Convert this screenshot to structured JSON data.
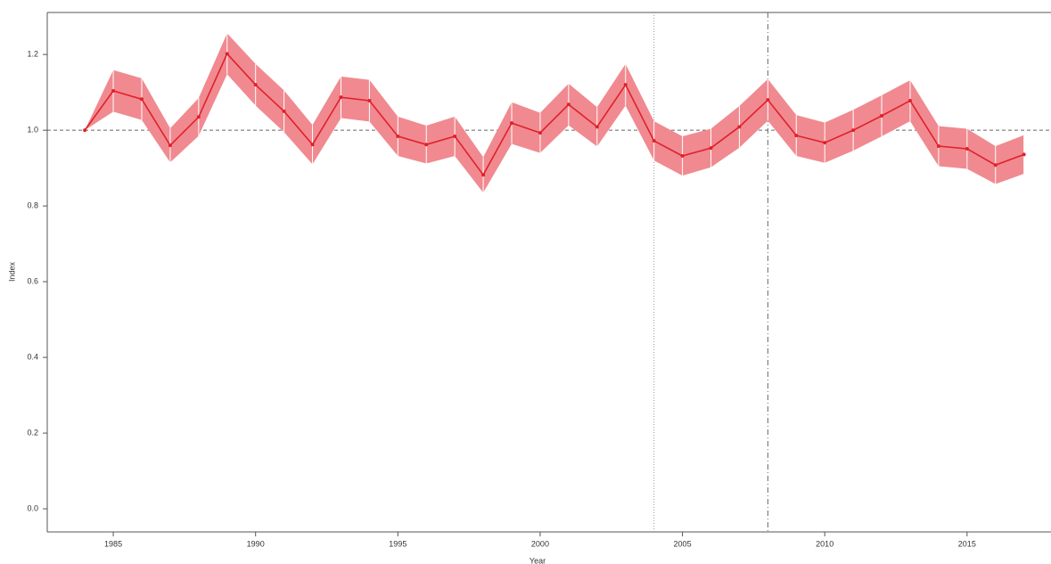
{
  "chart_data": {
    "type": "line",
    "x_label": "Year",
    "y_label": "Index",
    "x": [
      1984,
      1985,
      1986,
      1987,
      1988,
      1989,
      1990,
      1991,
      1992,
      1993,
      1994,
      1995,
      1996,
      1997,
      1998,
      1999,
      2000,
      2001,
      2002,
      2003,
      2004,
      2005,
      2006,
      2007,
      2008,
      2009,
      2010,
      2011,
      2012,
      2013,
      2014,
      2015,
      2016,
      2017
    ],
    "series": [
      {
        "color": "#e0202a",
        "band_color": "#f08a90",
        "values": [
          1.0,
          1.104,
          1.082,
          0.96,
          1.035,
          1.202,
          1.12,
          1.05,
          0.962,
          1.087,
          1.078,
          0.984,
          0.962,
          0.984,
          0.882,
          1.019,
          0.993,
          1.068,
          1.009,
          1.12,
          0.972,
          0.932,
          0.953,
          1.009,
          1.08,
          0.986,
          0.967,
          1.0,
          1.038,
          1.078,
          0.958,
          0.951,
          0.908,
          0.936
        ],
        "lower": [
          1.0,
          1.049,
          1.027,
          0.915,
          0.985,
          1.148,
          1.065,
          0.995,
          0.91,
          1.032,
          1.023,
          0.932,
          0.912,
          0.932,
          0.835,
          0.964,
          0.94,
          1.013,
          0.957,
          1.065,
          0.92,
          0.88,
          0.902,
          0.954,
          1.025,
          0.932,
          0.914,
          0.946,
          0.984,
          1.024,
          0.905,
          0.898,
          0.858,
          0.885
        ],
        "upper": [
          1.0,
          1.159,
          1.137,
          1.005,
          1.085,
          1.256,
          1.175,
          1.105,
          1.014,
          1.142,
          1.133,
          1.036,
          1.012,
          1.036,
          0.929,
          1.074,
          1.046,
          1.123,
          1.061,
          1.175,
          1.024,
          0.984,
          1.004,
          1.064,
          1.135,
          1.04,
          1.02,
          1.054,
          1.092,
          1.132,
          1.011,
          1.004,
          0.958,
          0.987
        ]
      }
    ],
    "hline": 1.0,
    "vlines": [
      {
        "value": 2004,
        "style": "dotted"
      },
      {
        "value": 2008,
        "style": "dashdot"
      }
    ],
    "xlim": [
      1982.68,
      2017.95
    ],
    "xticks": [
      1985,
      1990,
      1995,
      2000,
      2005,
      2010,
      2015
    ],
    "ylim": [
      -0.061,
      1.311
    ],
    "yticks": [
      {
        "value": 0,
        "label": "0.0"
      },
      0.2,
      0.4,
      0.6,
      0.8,
      {
        "value": 1,
        "label": "1.0"
      },
      1.2
    ]
  }
}
